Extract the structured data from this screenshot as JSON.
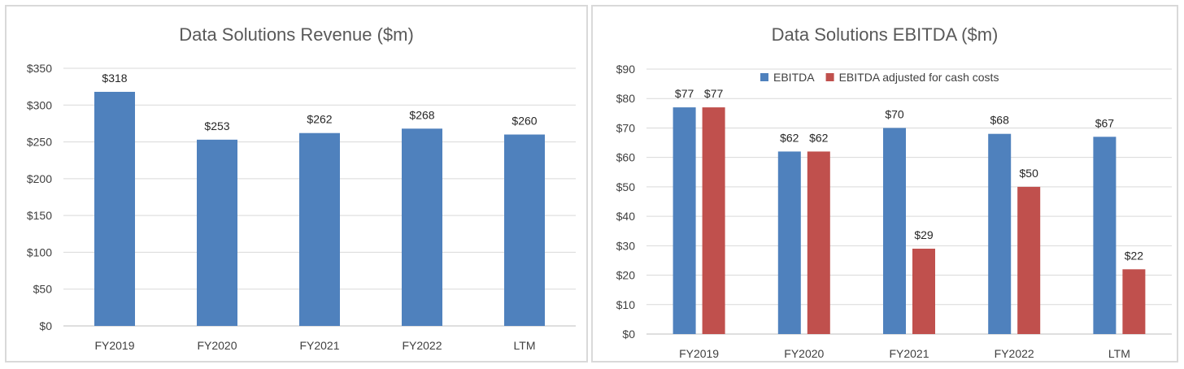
{
  "chart_data": [
    {
      "type": "bar",
      "title": "Data Solutions Revenue ($m)",
      "categories": [
        "FY2019",
        "FY2020",
        "FY2021",
        "FY2022",
        "LTM"
      ],
      "series": [
        {
          "name": "Revenue",
          "color": "#4f81bd",
          "values": [
            318,
            253,
            262,
            268,
            260
          ],
          "labels": [
            "$318",
            "$253",
            "$262",
            "$268",
            "$260"
          ]
        }
      ],
      "ylim": [
        0,
        350
      ],
      "yticks": [
        0,
        50,
        100,
        150,
        200,
        250,
        300,
        350
      ],
      "ytick_labels": [
        "$0",
        "$50",
        "$100",
        "$150",
        "$200",
        "$250",
        "$300",
        "$350"
      ],
      "grid": true,
      "legend": null,
      "xlabel": "",
      "ylabel": ""
    },
    {
      "type": "bar",
      "title": "Data Solutions EBITDA ($m)",
      "categories": [
        "FY2019",
        "FY2020",
        "FY2021",
        "FY2022",
        "LTM"
      ],
      "series": [
        {
          "name": "EBITDA",
          "color": "#4f81bd",
          "values": [
            77,
            62,
            70,
            68,
            67
          ],
          "labels": [
            "$77",
            "$62",
            "$70",
            "$68",
            "$67"
          ]
        },
        {
          "name": "EBITDA adjusted for cash costs",
          "color": "#c0504d",
          "values": [
            77,
            62,
            29,
            50,
            22
          ],
          "labels": [
            "$77",
            "$62",
            "$29",
            "$50",
            "$22"
          ]
        }
      ],
      "ylim": [
        0,
        90
      ],
      "yticks": [
        0,
        10,
        20,
        30,
        40,
        50,
        60,
        70,
        80,
        90
      ],
      "ytick_labels": [
        "$0",
        "$10",
        "$20",
        "$30",
        "$40",
        "$50",
        "$60",
        "$70",
        "$80",
        "$90"
      ],
      "grid": true,
      "legend": "top",
      "xlabel": "",
      "ylabel": ""
    }
  ]
}
